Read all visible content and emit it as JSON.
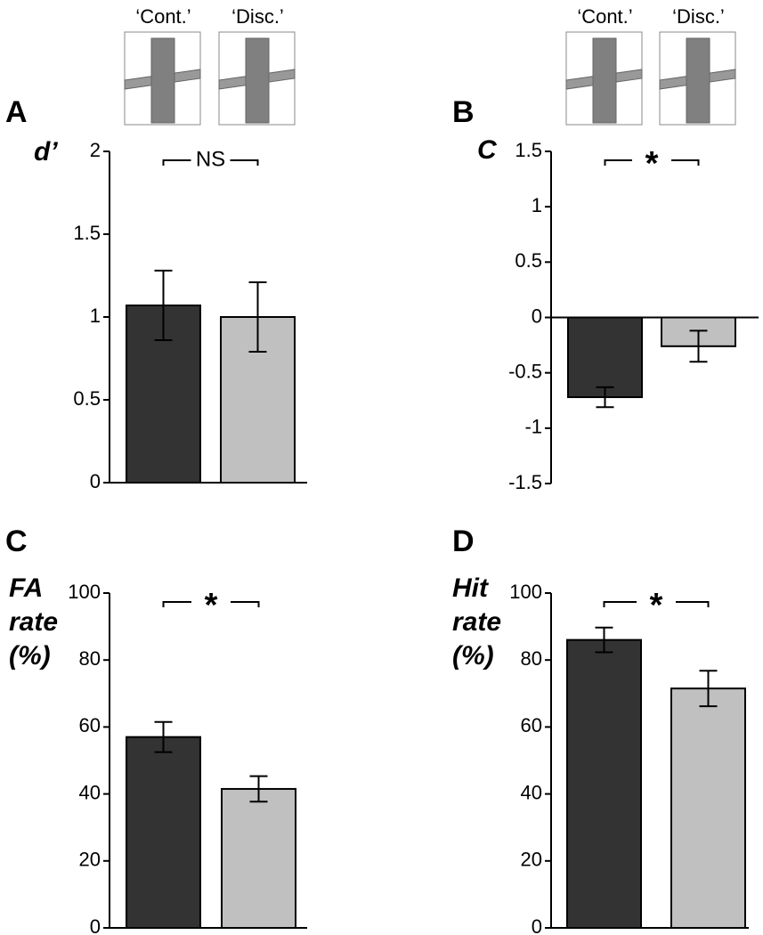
{
  "chart_data": [
    {
      "type": "bar",
      "panel": "A",
      "ylabel": [
        "d’"
      ],
      "categories": [
        "‘Cont.’",
        "‘Disc.’"
      ],
      "values": [
        1.07,
        1.0
      ],
      "errors": [
        0.21,
        0.21
      ],
      "colors": [
        "#333333",
        "#c0c0c0"
      ],
      "ylim": [
        0,
        2
      ],
      "yticks": [
        0,
        0.5,
        1,
        1.5,
        2
      ],
      "significance": "NS"
    },
    {
      "type": "bar",
      "panel": "B",
      "ylabel": [
        "C"
      ],
      "categories": [
        "‘Cont.’",
        "‘Disc.’"
      ],
      "values": [
        -0.72,
        -0.26
      ],
      "errors": [
        0.09,
        0.14
      ],
      "colors": [
        "#333333",
        "#c0c0c0"
      ],
      "ylim": [
        -1.5,
        1.5
      ],
      "yticks": [
        -1.5,
        -1,
        -0.5,
        0,
        0.5,
        1,
        1.5
      ],
      "significance": "*"
    },
    {
      "type": "bar",
      "panel": "C",
      "ylabel": [
        "FA",
        "rate",
        "(%)"
      ],
      "categories": [
        null,
        null
      ],
      "values": [
        57,
        41.5
      ],
      "errors": [
        4.5,
        3.8
      ],
      "colors": [
        "#333333",
        "#c0c0c0"
      ],
      "ylim": [
        0,
        100
      ],
      "yticks": [
        0,
        20,
        40,
        60,
        80,
        100
      ],
      "significance": "*"
    },
    {
      "type": "bar",
      "panel": "D",
      "ylabel": [
        "Hit",
        "rate",
        "(%)"
      ],
      "categories": [
        null,
        null
      ],
      "values": [
        86,
        71.5
      ],
      "errors": [
        3.7,
        5.3
      ],
      "colors": [
        "#333333",
        "#c0c0c0"
      ],
      "ylim": [
        0,
        100
      ],
      "yticks": [
        0,
        20,
        40,
        60,
        80,
        100
      ],
      "significance": "*"
    }
  ]
}
